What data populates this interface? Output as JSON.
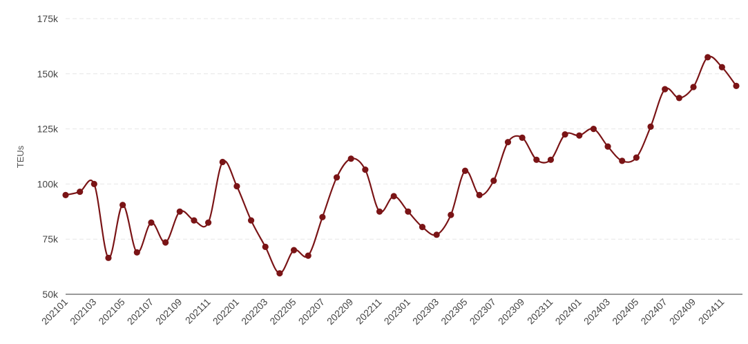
{
  "chart_data": {
    "type": "line",
    "title": "",
    "xlabel": "",
    "ylabel": "TEUs",
    "ylim": [
      50000,
      175000
    ],
    "yticks": [
      {
        "value": 50000,
        "label": "50k"
      },
      {
        "value": 75000,
        "label": "75k"
      },
      {
        "value": 100000,
        "label": "100k"
      },
      {
        "value": 125000,
        "label": "125k"
      },
      {
        "value": 150000,
        "label": "150k"
      },
      {
        "value": 175000,
        "label": "175k"
      }
    ],
    "grid": true,
    "smooth": true,
    "line_color": "#7a1416",
    "x": [
      "202101",
      "202102",
      "202103",
      "202104",
      "202105",
      "202106",
      "202107",
      "202108",
      "202109",
      "202110",
      "202111",
      "202112",
      "202201",
      "202202",
      "202203",
      "202204",
      "202205",
      "202206",
      "202207",
      "202208",
      "202209",
      "202210",
      "202211",
      "202212",
      "202301",
      "202302",
      "202303",
      "202304",
      "202305",
      "202306",
      "202307",
      "202308",
      "202309",
      "202310",
      "202311",
      "202312",
      "202401",
      "202402",
      "202403",
      "202404",
      "202405",
      "202406",
      "202407",
      "202408",
      "202409",
      "202410",
      "202411",
      "202412"
    ],
    "xtick_labels": [
      "202101",
      "202103",
      "202105",
      "202107",
      "202109",
      "202111",
      "202201",
      "202203",
      "202205",
      "202207",
      "202209",
      "202211",
      "202301",
      "202303",
      "202305",
      "202307",
      "202309",
      "202311",
      "202401",
      "202403",
      "202405",
      "202407",
      "202409",
      "202411"
    ],
    "values": [
      95000,
      96500,
      100000,
      66500,
      90500,
      69000,
      82500,
      73500,
      87500,
      83500,
      82500,
      110000,
      99000,
      83500,
      71500,
      59500,
      70000,
      67500,
      85000,
      103000,
      111500,
      106500,
      87500,
      94500,
      87500,
      80500,
      77000,
      86000,
      106000,
      95000,
      101500,
      119000,
      121000,
      111000,
      111000,
      122500,
      122000,
      125000,
      117000,
      110500,
      112000,
      126000,
      143000,
      139000,
      144000,
      157500,
      153000,
      144500
    ]
  }
}
